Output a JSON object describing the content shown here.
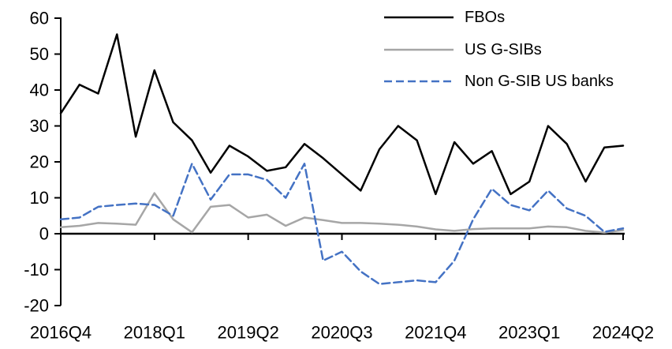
{
  "chart_data": {
    "type": "line",
    "title": "",
    "xlabel": "",
    "ylabel": "",
    "ylim": [
      -20,
      60
    ],
    "yticks": [
      60,
      50,
      40,
      30,
      20,
      10,
      0,
      -10,
      -20
    ],
    "grid": false,
    "legend_position": "top-right",
    "categories": [
      "2016Q4",
      "2017Q1",
      "2017Q2",
      "2017Q3",
      "2017Q4",
      "2018Q1",
      "2018Q2",
      "2018Q3",
      "2018Q4",
      "2019Q1",
      "2019Q2",
      "2019Q3",
      "2019Q4",
      "2020Q1",
      "2020Q2",
      "2020Q3",
      "2020Q4",
      "2021Q1",
      "2021Q2",
      "2021Q3",
      "2021Q4",
      "2022Q1",
      "2022Q2",
      "2022Q3",
      "2022Q4",
      "2023Q1",
      "2023Q2",
      "2023Q3",
      "2023Q4",
      "2024Q1",
      "2024Q2"
    ],
    "xtick_shown_indices": [
      0,
      5,
      10,
      15,
      20,
      25,
      30
    ],
    "xtick_labels": [
      "2016Q4",
      "2018Q1",
      "2019Q2",
      "2020Q3",
      "2021Q4",
      "2023Q1",
      "2024Q2"
    ],
    "series": [
      {
        "name": "FBOs",
        "color": "#000000",
        "dash": false,
        "values": [
          33.5,
          41.5,
          39,
          55.5,
          27,
          45.5,
          31,
          26,
          17,
          24.5,
          21.5,
          17.5,
          18.5,
          25,
          21,
          16.5,
          12,
          23.5,
          30,
          26,
          11,
          25.5,
          19.5,
          23,
          11,
          14.5,
          30,
          25,
          14.5,
          24,
          24.5
        ]
      },
      {
        "name": "US G-SIBs",
        "color": "#A6A6A6",
        "dash": false,
        "values": [
          1.8,
          2.2,
          3,
          2.8,
          2.5,
          11.3,
          4,
          0.4,
          7.5,
          8,
          4.5,
          5.3,
          2.2,
          4.5,
          3.8,
          3,
          3,
          2.8,
          2.5,
          2,
          1.2,
          0.8,
          1.3,
          1.5,
          1.5,
          1.5,
          2,
          1.8,
          0.8,
          0.3,
          1
        ]
      },
      {
        "name": "Non G-SIB US banks",
        "color": "#4472C4",
        "dash": true,
        "values": [
          4,
          4.5,
          7.5,
          8,
          8.4,
          8,
          5,
          19.5,
          9.5,
          16.5,
          16.5,
          15,
          10,
          19.5,
          -7.5,
          -5,
          -10.5,
          -14,
          -13.5,
          -13,
          -13.5,
          -7.5,
          4,
          12.5,
          8,
          6.5,
          12,
          7,
          5,
          0.5,
          1.5
        ]
      }
    ],
    "legend": [
      {
        "label": "FBOs",
        "swatch": "black-solid-line"
      },
      {
        "label": "US G-SIBs",
        "swatch": "gray-solid-line"
      },
      {
        "label": "Non G-SIB US banks",
        "swatch": "blue-dashed-line"
      }
    ]
  }
}
